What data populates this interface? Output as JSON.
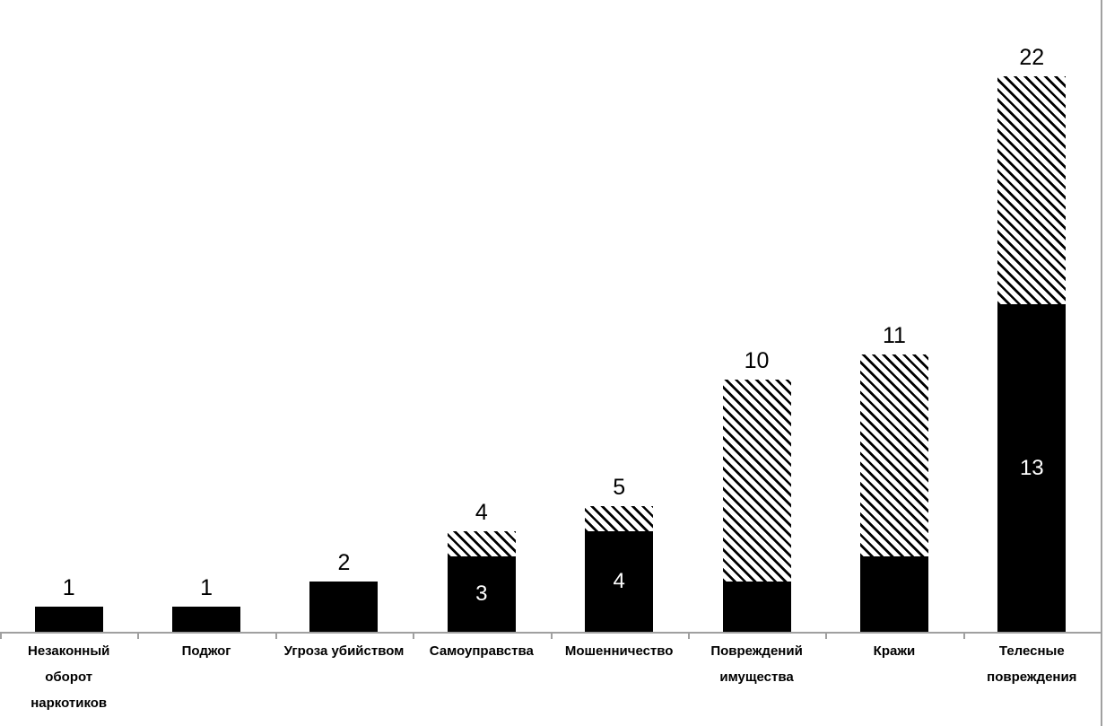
{
  "chart_data": {
    "type": "bar",
    "variant": "stacked-vertical",
    "title": "",
    "xlabel": "",
    "ylabel": "",
    "ylim": [
      0,
      22
    ],
    "grid": false,
    "legend": "none",
    "y_axis_visible": false,
    "categories": [
      "Незаконный оборот наркотиков",
      "Поджог",
      "Угроза убийством",
      "Самоуправства",
      "Мошенничество",
      "Повреждений имущества",
      "Кражи",
      "Телесные повреждения"
    ],
    "category_label_lines": [
      [
        "Незаконный",
        "оборот",
        "наркотиков"
      ],
      [
        "Поджог"
      ],
      [
        "Угроза убийством"
      ],
      [
        "Самоуправства"
      ],
      [
        "Мошенничество"
      ],
      [
        "Повреждений",
        "имущества"
      ],
      [
        "Кражи"
      ],
      [
        "Телесные",
        "повреждения"
      ]
    ],
    "series": [
      {
        "name": "solid-black",
        "style": "solid",
        "values": [
          1,
          1,
          2,
          3,
          4,
          2,
          3,
          13
        ]
      },
      {
        "name": "diagonal-hatch",
        "style": "hatched",
        "values": [
          0,
          0,
          0,
          1,
          1,
          8,
          8,
          9
        ]
      }
    ],
    "totals": [
      1,
      1,
      2,
      4,
      5,
      10,
      11,
      22
    ],
    "bar_total_labels": [
      "1",
      "1",
      "2",
      "4",
      "5",
      "10",
      "11",
      "22"
    ],
    "bar_inner_labels": [
      null,
      null,
      null,
      "3",
      "4",
      null,
      null,
      "13"
    ],
    "colors": {
      "background": "#ffffff",
      "bar_fill": "#000000",
      "hatch_line": "#000000",
      "hatch_background": "#ffffff",
      "axis_line": "#a0a0a0",
      "label_text": "#000000",
      "inner_label_text": "#ffffff"
    }
  }
}
